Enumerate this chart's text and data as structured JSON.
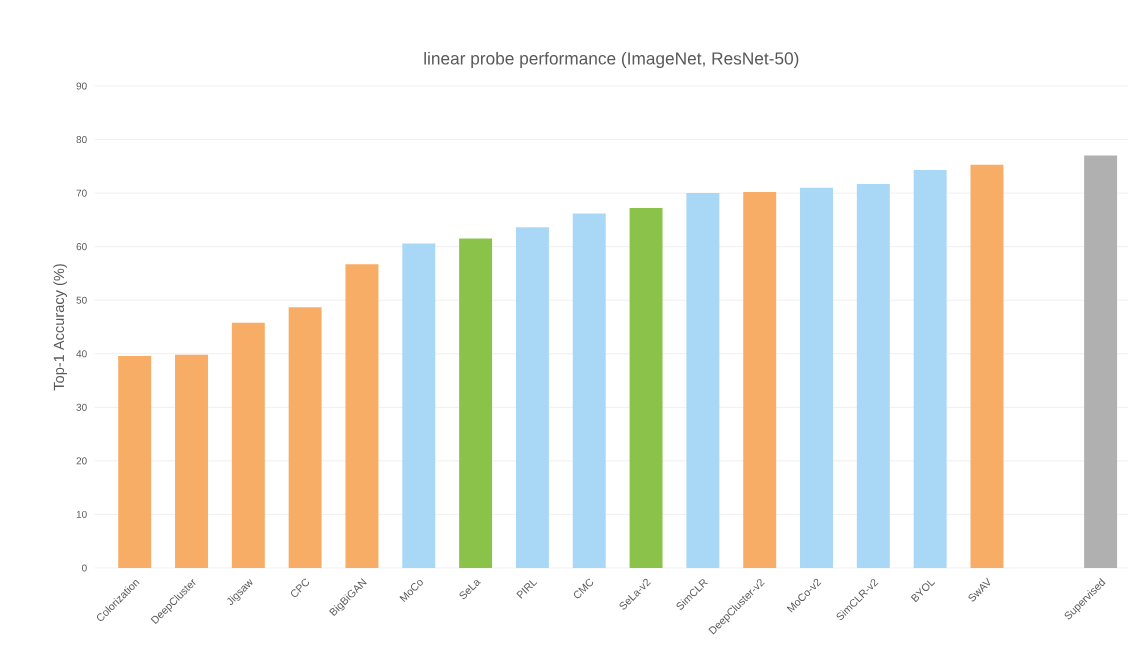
{
  "chart_data": {
    "type": "bar",
    "title": "linear probe performance (ImageNet, ResNet-50)",
    "ylabel": "Top-1 Accuracy (%)",
    "categories": [
      "Colorization",
      "DeepCluster",
      "Jigsaw",
      "CPC",
      "BigBiGAN",
      "MoCo",
      "SeLa",
      "PIRL",
      "CMC",
      "SeLa-v2",
      "SimCLR",
      "DeepCluster-v2",
      "MoCo-v2",
      "SimCLR-v2",
      "BYOL",
      "SwAV",
      null,
      "Supervised"
    ],
    "values": [
      39.6,
      39.8,
      45.8,
      48.7,
      56.7,
      60.6,
      61.5,
      63.6,
      66.2,
      67.2,
      70.0,
      70.2,
      71.0,
      71.7,
      74.3,
      75.3,
      null,
      77.0
    ],
    "colors": [
      "#f7ad65",
      "#f7ad65",
      "#f7ad65",
      "#f7ad65",
      "#f7ad65",
      "#a8d8f5",
      "#8bc34a",
      "#a8d8f5",
      "#a8d8f5",
      "#8bc34a",
      "#a8d8f5",
      "#f7ad65",
      "#a8d8f5",
      "#a8d8f5",
      "#a8d8f5",
      "#f7ad65",
      null,
      "#b0b0b0"
    ],
    "ylim": [
      0,
      90
    ],
    "yticks": [
      0,
      10,
      20,
      30,
      40,
      50,
      60,
      70,
      80,
      90
    ],
    "grid": "y"
  }
}
